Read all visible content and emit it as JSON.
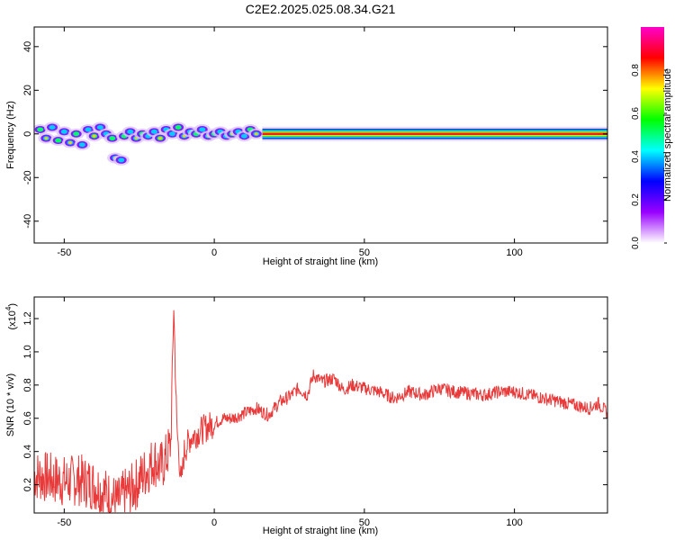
{
  "figure_title": "C2E2.2025.025.08.34.G21",
  "chart_data": [
    {
      "type": "heatmap",
      "title": "",
      "xlabel": "Height of straight line (km)",
      "ylabel": "Frequency (Hz)",
      "xlim": [
        -60,
        131
      ],
      "ylim": [
        -50,
        49
      ],
      "xticks": [
        -50,
        0,
        50,
        100
      ],
      "yticks": [
        -40,
        -20,
        0,
        20,
        40
      ],
      "grid": false,
      "colorbar": {
        "label": "Normalized spectral amplitude",
        "range": [
          0,
          1
        ],
        "ticks": [
          "0.0",
          "0.2",
          "0.4",
          "0.6",
          "0.8"
        ],
        "tick_values": [
          0.0,
          0.2,
          0.4,
          0.6,
          0.8
        ],
        "colormap": [
          "#ffffff",
          "#9900ff",
          "#0000ff",
          "#00ffff",
          "#00ff00",
          "#ffff00",
          "#ff0000",
          "#ff00cc"
        ]
      },
      "band": {
        "steady_from_km": 16,
        "center_hz": 0,
        "halfwidth_hz": 3
      },
      "blobs_km_hz": [
        [
          -58,
          2
        ],
        [
          -56,
          -2
        ],
        [
          -54,
          3
        ],
        [
          -52,
          -3
        ],
        [
          -50,
          1
        ],
        [
          -48,
          -4
        ],
        [
          -46,
          0
        ],
        [
          -44,
          -5
        ],
        [
          -42,
          2
        ],
        [
          -40,
          -1
        ],
        [
          -38,
          3
        ],
        [
          -36,
          0
        ],
        [
          -34,
          -2
        ],
        [
          -33,
          -11
        ],
        [
          -31,
          -12
        ],
        [
          -30,
          -1
        ],
        [
          -28,
          1
        ],
        [
          -26,
          -2
        ],
        [
          -24,
          0
        ],
        [
          -22,
          -1
        ],
        [
          -20,
          1
        ],
        [
          -18,
          -2
        ],
        [
          -16,
          2
        ],
        [
          -14,
          0
        ],
        [
          -12,
          3
        ],
        [
          -10,
          -1
        ],
        [
          -8,
          1
        ],
        [
          -6,
          0
        ],
        [
          -4,
          2
        ],
        [
          -2,
          -1
        ],
        [
          0,
          0
        ],
        [
          2,
          1
        ],
        [
          4,
          -1
        ],
        [
          6,
          0
        ],
        [
          8,
          1
        ],
        [
          10,
          -1
        ],
        [
          12,
          2
        ],
        [
          14,
          0
        ]
      ]
    },
    {
      "type": "line",
      "title": "",
      "xlabel": "Height of straight line (km)",
      "ylabel": "SNR (10 * v/v)",
      "y_multiplier": "(x10",
      "y_exponent": "4",
      "xlim": [
        -60,
        131
      ],
      "ylim": [
        0.03,
        1.33
      ],
      "xticks": [
        -50,
        0,
        50,
        100
      ],
      "yticks": [
        0.2,
        0.4,
        0.6,
        0.8,
        1.0,
        1.2
      ],
      "ytick_labels": [
        "0.2",
        "0.4",
        "0.6",
        "0.8",
        "1.0",
        "1.2"
      ],
      "grid": false,
      "series": [
        {
          "name": "",
          "color": "#e83a3a",
          "x": [
            -60,
            -55,
            -50,
            -45,
            -40,
            -35,
            -32,
            -30,
            -27,
            -25,
            -22,
            -20,
            -18,
            -16,
            -14.5,
            -13.5,
            -12.5,
            -11,
            -10,
            -8,
            -5,
            -2,
            0,
            3,
            6,
            10,
            14,
            18,
            22,
            25,
            28,
            31,
            33,
            36,
            40,
            43,
            46,
            50,
            55,
            60,
            65,
            70,
            75,
            80,
            85,
            90,
            95,
            100,
            105,
            110,
            115,
            120,
            125,
            128,
            131
          ],
          "y": [
            0.26,
            0.24,
            0.22,
            0.23,
            0.2,
            0.13,
            0.09,
            0.14,
            0.18,
            0.23,
            0.3,
            0.35,
            0.3,
            0.36,
            0.45,
            1.28,
            0.55,
            0.2,
            0.4,
            0.48,
            0.52,
            0.55,
            0.57,
            0.6,
            0.6,
            0.63,
            0.66,
            0.62,
            0.7,
            0.73,
            0.78,
            0.74,
            0.86,
            0.82,
            0.84,
            0.77,
            0.8,
            0.78,
            0.76,
            0.72,
            0.76,
            0.74,
            0.78,
            0.76,
            0.75,
            0.74,
            0.76,
            0.76,
            0.74,
            0.72,
            0.7,
            0.68,
            0.66,
            0.69,
            0.63
          ]
        }
      ]
    }
  ]
}
